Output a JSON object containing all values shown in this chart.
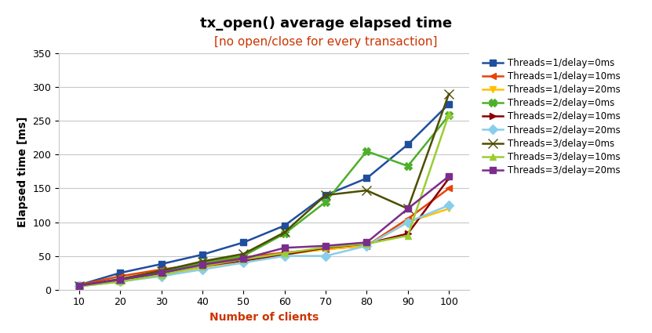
{
  "title": "tx_open() average elapsed time",
  "subtitle": "[no open/close for every transaction]",
  "xlabel": "Number of clients",
  "ylabel": "Elapsed time [ms]",
  "x": [
    10,
    20,
    30,
    40,
    50,
    60,
    70,
    80,
    90,
    100
  ],
  "ylim": [
    0,
    350
  ],
  "series": [
    {
      "label": "Threads=1/delay=0ms",
      "color": "#1f4e9e",
      "marker": "s",
      "markersize": 6,
      "linewidth": 1.8,
      "y": [
        7,
        25,
        38,
        52,
        70,
        95,
        140,
        165,
        215,
        275
      ]
    },
    {
      "label": "Threads=1/delay=10ms",
      "color": "#e8430a",
      "marker": "<",
      "markersize": 6,
      "linewidth": 1.8,
      "y": [
        7,
        20,
        30,
        38,
        48,
        55,
        60,
        65,
        105,
        150
      ]
    },
    {
      "label": "Threads=1/delay=20ms",
      "color": "#ffc000",
      "marker": "v",
      "markersize": 6,
      "linewidth": 1.8,
      "y": [
        6,
        12,
        22,
        33,
        43,
        52,
        60,
        65,
        100,
        120
      ]
    },
    {
      "label": "Threads=2/delay=0ms",
      "color": "#4daf2a",
      "marker": "X",
      "markersize": 7,
      "linewidth": 1.8,
      "y": [
        6,
        14,
        26,
        40,
        50,
        83,
        130,
        205,
        183,
        258
      ]
    },
    {
      "label": "Threads=2/delay=10ms",
      "color": "#8b0000",
      "marker": ">",
      "markersize": 6,
      "linewidth": 1.8,
      "y": [
        6,
        14,
        24,
        35,
        43,
        52,
        62,
        68,
        83,
        165
      ]
    },
    {
      "label": "Threads=2/delay=20ms",
      "color": "#87ceeb",
      "marker": "D",
      "markersize": 6,
      "linewidth": 1.8,
      "y": [
        5,
        12,
        20,
        30,
        40,
        50,
        50,
        65,
        100,
        125
      ]
    },
    {
      "label": "Threads=3/delay=0ms",
      "color": "#4d4d00",
      "marker": "x",
      "markersize": 8,
      "linewidth": 1.8,
      "y": [
        6,
        16,
        28,
        42,
        53,
        85,
        140,
        147,
        120,
        290
      ]
    },
    {
      "label": "Threads=3/delay=10ms",
      "color": "#9acd32",
      "marker": "^",
      "markersize": 6,
      "linewidth": 1.8,
      "y": [
        5,
        12,
        22,
        35,
        45,
        54,
        63,
        68,
        80,
        260
      ]
    },
    {
      "label": "Threads=3/delay=20ms",
      "color": "#7b2d8b",
      "marker": "s",
      "markersize": 6,
      "linewidth": 1.8,
      "y": [
        6,
        15,
        25,
        37,
        46,
        62,
        65,
        70,
        120,
        168
      ]
    }
  ],
  "title_fontsize": 13,
  "subtitle_fontsize": 11,
  "label_fontsize": 10,
  "tick_fontsize": 9,
  "legend_fontsize": 8.5,
  "background_color": "#ffffff",
  "grid_color": "#c8c8c8",
  "subtitle_color": "#cc3300",
  "xlabel_color": "#cc3300",
  "ylabel_color": "#000000",
  "tick_color": "#000000",
  "xtick_color": "#000000"
}
